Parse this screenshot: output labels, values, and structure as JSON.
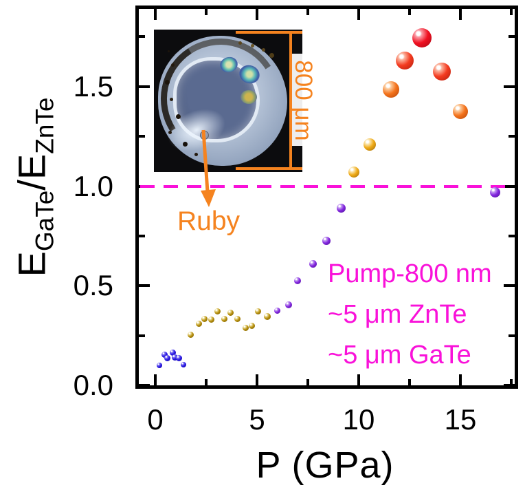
{
  "axes": {
    "x": {
      "label": "P (GPa)",
      "tick_labels": [
        "0",
        "5",
        "10",
        "15"
      ],
      "tick_values": [
        0,
        5,
        10,
        15
      ],
      "minor_tick_values": [
        2.5,
        7.5,
        12.5,
        17.5
      ]
    },
    "y": {
      "label_e1": "E",
      "label_sub1": "GaTe",
      "label_slash": "/",
      "label_e2": "E",
      "label_sub2": "ZnTe",
      "tick_labels": [
        "0.0",
        "0.5",
        "1.0",
        "1.5"
      ],
      "tick_values": [
        0,
        0.5,
        1.0,
        1.5
      ],
      "minor_tick_values": [
        0.25,
        0.75,
        1.25,
        1.75
      ]
    }
  },
  "annotations": {
    "line1": "Pump-800 nm",
    "line2": "~5 μm ZnTe",
    "line3": "~5 μm GaTe"
  },
  "inset": {
    "ruby_label": "Ruby",
    "scale_label": "800 μm"
  },
  "colors": {
    "magenta": "#F911D9",
    "orange_annotation": "#F5831F",
    "axis_black": "#000000"
  },
  "chart_data": {
    "type": "scatter",
    "title": "",
    "xlabel": "P (GPa)",
    "ylabel": "E_GaTe/E_ZnTe",
    "xlim": [
      -1,
      17.9
    ],
    "ylim": [
      0,
      1.9
    ],
    "x_ticks": [
      0,
      5,
      10,
      15
    ],
    "y_ticks": [
      0.0,
      0.5,
      1.0,
      1.5
    ],
    "grid": false,
    "legend": false,
    "reference_line_y": 1.0,
    "point_format": "[P_GPa, ratio, marker_px]",
    "series": [
      {
        "name": "blue-low-P",
        "base": "#2917E6",
        "light": "#8F86F2",
        "dark": "#140A8C",
        "points": [
          [
            0.2,
            0.1,
            8
          ],
          [
            0.45,
            0.155,
            9
          ],
          [
            0.6,
            0.135,
            9
          ],
          [
            0.85,
            0.165,
            9
          ],
          [
            0.95,
            0.14,
            9
          ],
          [
            1.15,
            0.135,
            9
          ],
          [
            1.4,
            0.105,
            8
          ]
        ]
      },
      {
        "name": "olive-mid-P",
        "base": "#B8900E",
        "light": "#EFE3A6",
        "dark": "#6E5600",
        "points": [
          [
            1.75,
            0.255,
            9
          ],
          [
            2.15,
            0.31,
            9
          ],
          [
            2.4,
            0.335,
            9
          ],
          [
            2.75,
            0.33,
            9
          ],
          [
            3.05,
            0.37,
            9
          ],
          [
            3.4,
            0.335,
            9
          ],
          [
            3.7,
            0.365,
            9
          ],
          [
            4.05,
            0.335,
            9
          ],
          [
            4.45,
            0.29,
            9
          ],
          [
            4.75,
            0.3,
            9
          ],
          [
            5.05,
            0.37,
            9
          ],
          [
            5.5,
            0.345,
            10
          ]
        ]
      },
      {
        "name": "purple-rise",
        "base": "#8326DF",
        "light": "#C9A6F2",
        "dark": "#4A1292",
        "points": [
          [
            6.0,
            0.375,
            9
          ],
          [
            6.55,
            0.405,
            10
          ],
          [
            7.0,
            0.525,
            10
          ],
          [
            7.75,
            0.61,
            11
          ],
          [
            8.4,
            0.725,
            12
          ],
          [
            9.15,
            0.89,
            13
          ],
          [
            16.7,
            0.97,
            15
          ]
        ]
      },
      {
        "name": "amber-cross",
        "base": "#EFAA16",
        "light": "#FBE9B8",
        "dark": "#99660A",
        "points": [
          [
            9.75,
            1.07,
            16
          ],
          [
            10.55,
            1.21,
            18
          ]
        ]
      },
      {
        "name": "orange-high",
        "base": "#F4731C",
        "light": "#FCCDA0",
        "dark": "#B34206",
        "points": [
          [
            11.6,
            1.485,
            24
          ],
          [
            15.0,
            1.375,
            22
          ]
        ]
      },
      {
        "name": "redorange-peakside",
        "base": "#F43B20",
        "light": "#FBB49E",
        "dark": "#AF1C0C",
        "points": [
          [
            12.25,
            1.63,
            26
          ],
          [
            14.1,
            1.575,
            26
          ]
        ]
      },
      {
        "name": "red-peak",
        "base": "#F01021",
        "light": "#FA9AA4",
        "dark": "#A50714",
        "points": [
          [
            13.1,
            1.745,
            28
          ]
        ]
      }
    ]
  }
}
